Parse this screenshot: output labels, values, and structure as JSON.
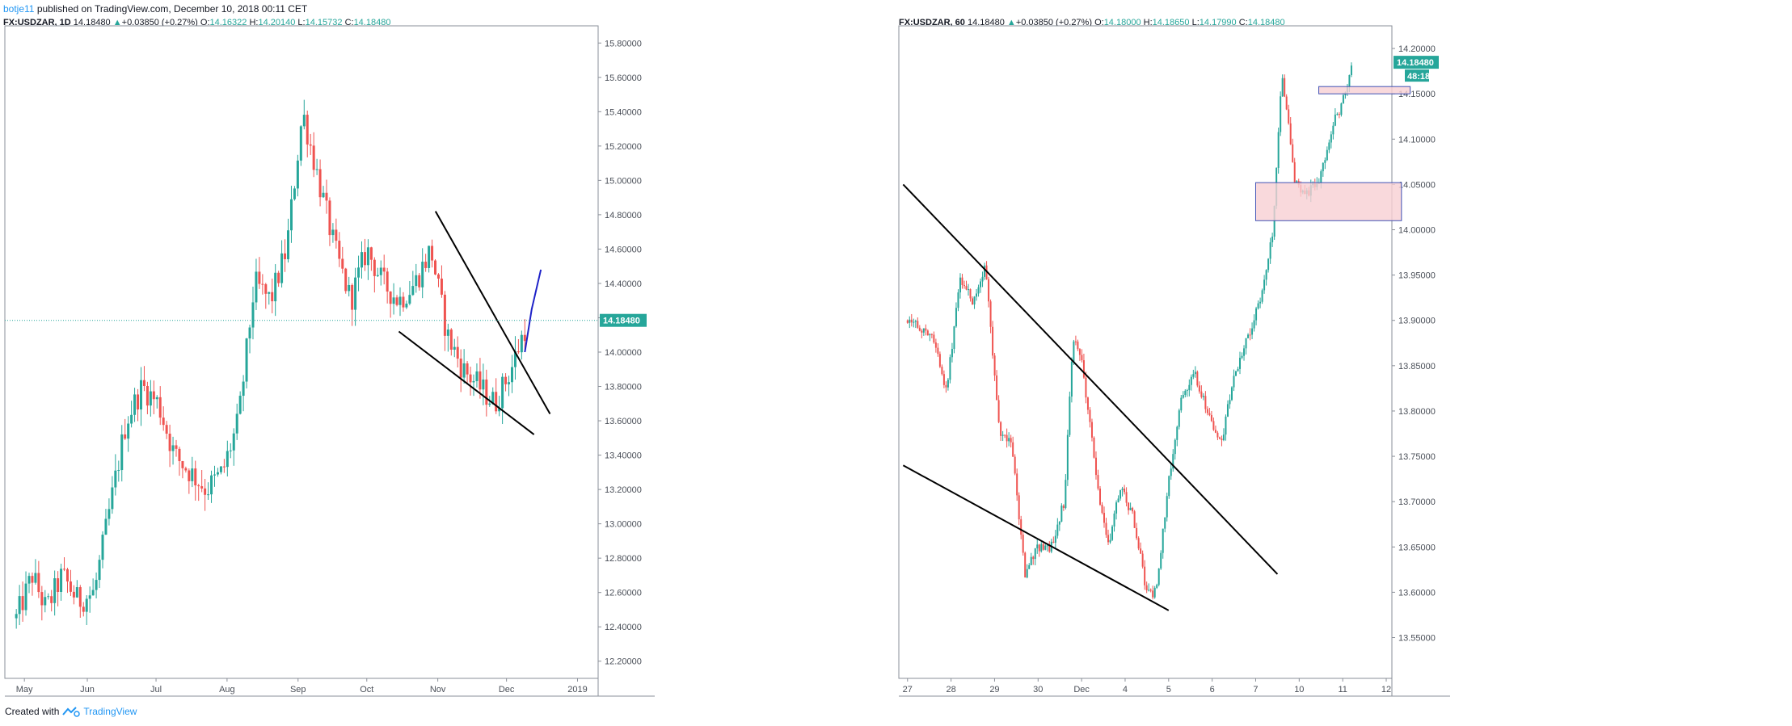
{
  "published": {
    "author": "botje11",
    "text": "published on TradingView.com, December 10, 2018 00:11 CET"
  },
  "footer": {
    "created_with": "Created with",
    "brand": "TradingView"
  },
  "colors": {
    "up": "#26a69a",
    "down": "#ef5350",
    "trend": "#000000",
    "projection": "#1e22c8",
    "zone_fill": "#f8cfd3",
    "zone_border": "#3f51b5",
    "price_line": "#26a69a"
  },
  "panels": [
    {
      "symbol": "FX:USDZAR, 1D",
      "last": "14.18480",
      "change": "+0.03850 (+0.27%)",
      "o_label": "O:",
      "open": "14.16322",
      "h_label": "H:",
      "high": "14.20140",
      "l_label": "L:",
      "low": "14.15732",
      "c_label": "C:",
      "close": "14.18480",
      "price_tag": "14.18480"
    },
    {
      "symbol": "FX:USDZAR, 60",
      "last": "14.18480",
      "change": "+0.03850 (+0.27%)",
      "o_label": "O:",
      "open": "14.18000",
      "h_label": "H:",
      "high": "14.18650",
      "l_label": "L:",
      "low": "14.17990",
      "c_label": "C:",
      "close": "14.18480",
      "price_tag": "14.18480",
      "countdown": "48:18"
    }
  ],
  "chart_data": [
    {
      "type": "candlestick",
      "symbol": "FX:USDZAR",
      "interval": "1D",
      "ylim": [
        12.1,
        15.9
      ],
      "y_ticks": [
        "12.20000",
        "12.40000",
        "12.60000",
        "12.80000",
        "13.00000",
        "13.20000",
        "13.40000",
        "13.60000",
        "13.80000",
        "14.00000",
        "14.20000",
        "14.40000",
        "14.60000",
        "14.80000",
        "15.00000",
        "15.20000",
        "15.40000",
        "15.60000",
        "15.80000"
      ],
      "x_ticks": [
        "May",
        "Jun",
        "Jul",
        "Aug",
        "Sep",
        "Oct",
        "Nov",
        "Dec",
        "2019"
      ],
      "last_price": 14.1848,
      "close_path": [
        [
          "2018-05-01",
          12.45
        ],
        [
          "2018-05-08",
          12.7
        ],
        [
          "2018-05-14",
          12.5
        ],
        [
          "2018-05-21",
          12.7
        ],
        [
          "2018-05-28",
          12.55
        ],
        [
          "2018-06-04",
          12.6
        ],
        [
          "2018-06-11",
          13.1
        ],
        [
          "2018-06-18",
          13.6
        ],
        [
          "2018-06-25",
          13.8
        ],
        [
          "2018-07-02",
          13.7
        ],
        [
          "2018-07-09",
          13.4
        ],
        [
          "2018-07-16",
          13.3
        ],
        [
          "2018-07-23",
          13.2
        ],
        [
          "2018-07-30",
          13.3
        ],
        [
          "2018-08-06",
          13.6
        ],
        [
          "2018-08-13",
          14.4
        ],
        [
          "2018-08-20",
          14.3
        ],
        [
          "2018-08-27",
          14.6
        ],
        [
          "2018-09-03",
          15.4
        ],
        [
          "2018-09-10",
          15.0
        ],
        [
          "2018-09-17",
          14.6
        ],
        [
          "2018-09-24",
          14.3
        ],
        [
          "2018-10-01",
          14.6
        ],
        [
          "2018-10-08",
          14.4
        ],
        [
          "2018-10-15",
          14.3
        ],
        [
          "2018-10-22",
          14.4
        ],
        [
          "2018-10-29",
          14.6
        ],
        [
          "2018-11-05",
          14.1
        ],
        [
          "2018-11-12",
          13.9
        ],
        [
          "2018-11-19",
          13.8
        ],
        [
          "2018-11-26",
          13.7
        ],
        [
          "2018-12-03",
          13.9
        ],
        [
          "2018-12-10",
          14.18
        ]
      ],
      "trendlines": [
        {
          "from": [
            "2018-10-31",
            14.82
          ],
          "to": [
            "2018-12-20",
            13.64
          ]
        },
        {
          "from": [
            "2018-10-15",
            14.12
          ],
          "to": [
            "2018-12-13",
            13.52
          ]
        }
      ],
      "projection": [
        [
          "2018-12-09",
          14.0
        ],
        [
          "2018-12-12",
          14.25
        ],
        [
          "2018-12-16",
          14.48
        ]
      ]
    },
    {
      "type": "candlestick",
      "symbol": "FX:USDZAR",
      "interval": "60",
      "ylim": [
        13.505,
        14.225
      ],
      "y_ticks": [
        "13.55000",
        "13.60000",
        "13.65000",
        "13.70000",
        "13.75000",
        "13.80000",
        "13.85000",
        "13.90000",
        "13.95000",
        "14.00000",
        "14.05000",
        "14.10000",
        "14.15000",
        "14.20000"
      ],
      "x_ticks": [
        "27",
        "28",
        "29",
        "30",
        "Dec",
        "4",
        "5",
        "6",
        "7",
        "10",
        "11",
        "12"
      ],
      "last_price": 14.1848,
      "close_path": [
        [
          "27",
          13.9
        ],
        [
          "27.6",
          13.88
        ],
        [
          "27.9",
          13.82
        ],
        [
          "28.2",
          13.95
        ],
        [
          "28.5",
          13.92
        ],
        [
          "28.8",
          13.96
        ],
        [
          "29.1",
          13.78
        ],
        [
          "29.4",
          13.76
        ],
        [
          "29.7",
          13.62
        ],
        [
          "30.0",
          13.65
        ],
        [
          "30.3",
          13.65
        ],
        [
          "30.6",
          13.7
        ],
        [
          "30.8",
          13.88
        ],
        [
          "31.0",
          13.86
        ],
        [
          "31.3",
          13.74
        ],
        [
          "31.6",
          13.65
        ],
        [
          "31.9",
          13.72
        ],
        [
          "32.2",
          13.68
        ],
        [
          "32.5",
          13.6
        ],
        [
          "32.7",
          13.6
        ],
        [
          "33.0",
          13.72
        ],
        [
          "33.3",
          13.82
        ],
        [
          "33.6",
          13.84
        ],
        [
          "33.9",
          13.8
        ],
        [
          "34.2",
          13.76
        ],
        [
          "34.5",
          13.84
        ],
        [
          "34.8",
          13.88
        ],
        [
          "35.1",
          13.92
        ],
        [
          "35.4",
          14.0
        ],
        [
          "35.6",
          14.18
        ],
        [
          "35.9",
          14.05
        ],
        [
          "36.2",
          14.04
        ],
        [
          "36.5",
          14.06
        ],
        [
          "36.8",
          14.12
        ],
        [
          "37.0",
          14.14
        ],
        [
          "37.2",
          14.18
        ]
      ],
      "trendlines": [
        {
          "from": [
            "26.9",
            14.05
          ],
          "to": [
            "35.5",
            13.62
          ]
        },
        {
          "from": [
            "26.9",
            13.74
          ],
          "to": [
            "33.0",
            13.58
          ]
        }
      ],
      "zones": [
        {
          "x0": "35.0",
          "x1": "38.35",
          "y0": 14.01,
          "y1": 14.052
        },
        {
          "x0": "36.45",
          "x1": "38.55",
          "y0": 14.15,
          "y1": 14.158
        }
      ]
    }
  ]
}
